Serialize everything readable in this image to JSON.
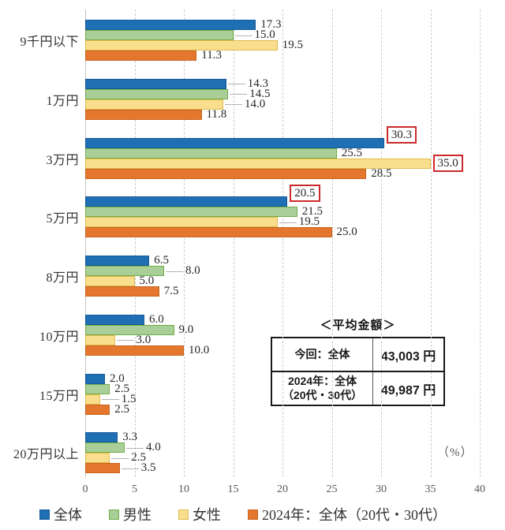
{
  "chart_data": {
    "type": "bar",
    "orientation": "horizontal",
    "title": "",
    "xlabel": "",
    "ylabel": "",
    "unit_label": "（%）",
    "xlim": [
      0,
      40
    ],
    "tick_step": 5,
    "grid": "vertical-dashed",
    "legend_position": "bottom",
    "categories": [
      "9千円以下",
      "1万円",
      "3万円",
      "5万円",
      "8万円",
      "10万円",
      "15万円",
      "20万円以上"
    ],
    "series": [
      {
        "name": "全体",
        "color": "#1F6FB5",
        "border_color": "#17599A",
        "values": [
          17.3,
          14.3,
          30.3,
          20.5,
          6.5,
          6.0,
          2.0,
          3.3
        ]
      },
      {
        "name": "男性",
        "color": "#A9CE97",
        "border_color": "#70AD47",
        "values": [
          15.0,
          14.5,
          25.5,
          21.5,
          8.0,
          9.0,
          2.5,
          4.0
        ]
      },
      {
        "name": "女性",
        "color": "#F9DF8D",
        "border_color": "#E0B94F",
        "values": [
          19.5,
          14.0,
          35.0,
          19.5,
          5.0,
          3.0,
          1.5,
          2.5
        ]
      },
      {
        "name": "2024年：全体（20代・30代）",
        "color": "#E4762D",
        "border_color": "#C8651F",
        "values": [
          11.3,
          11.8,
          28.5,
          25.0,
          7.5,
          10.0,
          2.5,
          3.5
        ]
      }
    ],
    "highlighted_labels": [
      {
        "series": 0,
        "category": 2,
        "value": 30.3
      },
      {
        "series": 2,
        "category": 2,
        "value": 35.0
      },
      {
        "series": 0,
        "category": 3,
        "value": 20.5
      }
    ],
    "highlight_box_color": "#CC2A2A",
    "leader_line_labels": [
      {
        "series": 1,
        "category": 0
      },
      {
        "series": 0,
        "category": 1
      },
      {
        "series": 1,
        "category": 1
      },
      {
        "series": 2,
        "category": 1
      },
      {
        "series": 2,
        "category": 3
      },
      {
        "series": 1,
        "category": 4
      },
      {
        "series": 2,
        "category": 5
      },
      {
        "series": 2,
        "category": 6
      },
      {
        "series": 1,
        "category": 7
      },
      {
        "series": 2,
        "category": 7
      },
      {
        "series": 3,
        "category": 7
      }
    ]
  },
  "average_table": {
    "title": "＜平均金額＞",
    "rows": [
      {
        "label": "今回：全体",
        "value": "43,003 円"
      },
      {
        "label": "2024年：全体\n（20代・30代）",
        "value": "49,987 円"
      }
    ]
  }
}
